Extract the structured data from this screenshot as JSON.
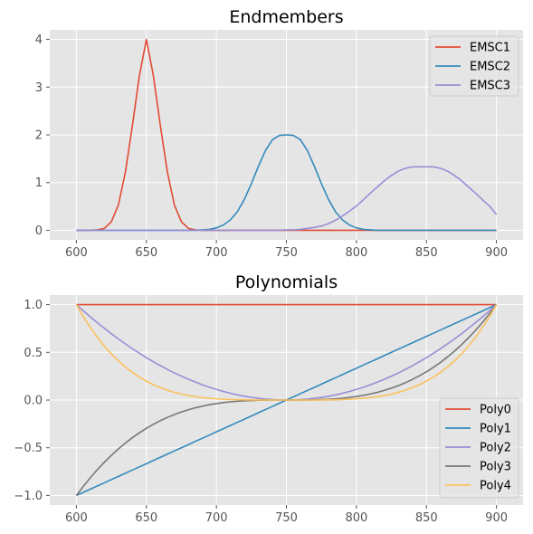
{
  "style": {
    "axes_bg": "#E5E5E5",
    "grid_color": "#FFFFFF",
    "tick_color": "#555555"
  },
  "chart_data": [
    {
      "type": "line",
      "title": "Endmembers",
      "xlabel": "",
      "ylabel": "",
      "xlim": [
        581,
        919
      ],
      "ylim": [
        -0.2,
        4.2
      ],
      "xticks": [
        600,
        650,
        700,
        750,
        800,
        850,
        900
      ],
      "yticks": [
        0,
        1,
        2,
        3,
        4
      ],
      "xtick_labels": [
        "600",
        "650",
        "700",
        "750",
        "800",
        "850",
        "900"
      ],
      "ytick_labels": [
        "0",
        "1",
        "2",
        "3",
        "4"
      ],
      "grid": true,
      "legend_position": "upper-right",
      "x": [
        600,
        605,
        610,
        615,
        620,
        625,
        630,
        635,
        640,
        645,
        650,
        655,
        660,
        665,
        670,
        675,
        680,
        685,
        690,
        695,
        700,
        705,
        710,
        715,
        720,
        725,
        730,
        735,
        740,
        745,
        750,
        755,
        760,
        765,
        770,
        775,
        780,
        785,
        790,
        795,
        800,
        805,
        810,
        815,
        820,
        825,
        830,
        835,
        840,
        845,
        850,
        855,
        860,
        865,
        870,
        875,
        880,
        885,
        890,
        895,
        900
      ],
      "series": [
        {
          "name": "EMSC1",
          "color": "#E24A33",
          "values": [
            0.0,
            0.0,
            0.0,
            0.01,
            0.04,
            0.18,
            0.53,
            1.22,
            2.19,
            3.24,
            4.0,
            3.24,
            2.19,
            1.22,
            0.53,
            0.18,
            0.04,
            0.01,
            0.0,
            0.0,
            0.0,
            0.0,
            0.0,
            0.0,
            0.0,
            0.0,
            0.0,
            0.0,
            0.0,
            0.0,
            0.0,
            0.0,
            0.0,
            0.0,
            0.0,
            0.0,
            0.0,
            0.0,
            0.0,
            0.0,
            0.0,
            0.0,
            0.0,
            0.0,
            0.0,
            0.0,
            0.0,
            0.0,
            0.0,
            0.0,
            0.0,
            0.0,
            0.0,
            0.0,
            0.0,
            0.0,
            0.0,
            0.0,
            0.0,
            0.0,
            0.0
          ]
        },
        {
          "name": "EMSC2",
          "color": "#348ABD",
          "values": [
            0.0,
            0.0,
            0.0,
            0.0,
            0.0,
            0.0,
            0.0,
            0.0,
            0.0,
            0.0,
            0.0,
            0.0,
            0.0,
            0.0,
            0.0,
            0.0,
            0.0,
            0.0,
            0.01,
            0.02,
            0.05,
            0.11,
            0.22,
            0.39,
            0.65,
            0.98,
            1.34,
            1.67,
            1.9,
            1.99,
            2.0,
            1.99,
            1.9,
            1.67,
            1.34,
            0.98,
            0.65,
            0.39,
            0.22,
            0.11,
            0.05,
            0.02,
            0.01,
            0.0,
            0.0,
            0.0,
            0.0,
            0.0,
            0.0,
            0.0,
            0.0,
            0.0,
            0.0,
            0.0,
            0.0,
            0.0,
            0.0,
            0.0,
            0.0,
            0.0,
            0.0
          ]
        },
        {
          "name": "EMSC3",
          "color": "#988ED5",
          "values": [
            0.0,
            0.0,
            0.0,
            0.0,
            0.0,
            0.0,
            0.0,
            0.0,
            0.0,
            0.0,
            0.0,
            0.0,
            0.0,
            0.0,
            0.0,
            0.0,
            0.0,
            0.0,
            0.0,
            0.0,
            0.0,
            0.0,
            0.0,
            0.0,
            0.0,
            0.0,
            0.0,
            0.0,
            0.0,
            0.0,
            0.01,
            0.01,
            0.02,
            0.04,
            0.06,
            0.09,
            0.14,
            0.21,
            0.3,
            0.4,
            0.51,
            0.64,
            0.78,
            0.91,
            1.04,
            1.15,
            1.24,
            1.3,
            1.33,
            1.33,
            1.33,
            1.33,
            1.3,
            1.24,
            1.15,
            1.04,
            0.91,
            0.78,
            0.64,
            0.51,
            0.33
          ]
        }
      ]
    },
    {
      "type": "line",
      "title": "Polynomials",
      "xlabel": "",
      "ylabel": "",
      "xlim": [
        581,
        919
      ],
      "ylim": [
        -1.1,
        1.1
      ],
      "xticks": [
        600,
        650,
        700,
        750,
        800,
        850,
        900
      ],
      "yticks": [
        -1.0,
        -0.5,
        0.0,
        0.5,
        1.0
      ],
      "xtick_labels": [
        "600",
        "650",
        "700",
        "750",
        "800",
        "850",
        "900"
      ],
      "ytick_labels": [
        "−1.0",
        "−0.5",
        "0.0",
        "0.5",
        "1.0"
      ],
      "grid": true,
      "legend_position": "lower-right",
      "x": [
        600,
        605,
        610,
        615,
        620,
        625,
        630,
        635,
        640,
        645,
        650,
        655,
        660,
        665,
        670,
        675,
        680,
        685,
        690,
        695,
        700,
        705,
        710,
        715,
        720,
        725,
        730,
        735,
        740,
        745,
        750,
        755,
        760,
        765,
        770,
        775,
        780,
        785,
        790,
        795,
        800,
        805,
        810,
        815,
        820,
        825,
        830,
        835,
        840,
        845,
        850,
        855,
        860,
        865,
        870,
        875,
        880,
        885,
        890,
        895,
        900
      ],
      "series": [
        {
          "name": "Poly0",
          "color": "#E24A33",
          "values": [
            1,
            1,
            1,
            1,
            1,
            1,
            1,
            1,
            1,
            1,
            1,
            1,
            1,
            1,
            1,
            1,
            1,
            1,
            1,
            1,
            1,
            1,
            1,
            1,
            1,
            1,
            1,
            1,
            1,
            1,
            1,
            1,
            1,
            1,
            1,
            1,
            1,
            1,
            1,
            1,
            1,
            1,
            1,
            1,
            1,
            1,
            1,
            1,
            1,
            1,
            1,
            1,
            1,
            1,
            1,
            1,
            1,
            1,
            1,
            1,
            1
          ]
        },
        {
          "name": "Poly1",
          "color": "#348ABD",
          "values": [
            -1.0,
            -0.967,
            -0.933,
            -0.9,
            -0.867,
            -0.833,
            -0.8,
            -0.767,
            -0.733,
            -0.7,
            -0.667,
            -0.633,
            -0.6,
            -0.567,
            -0.533,
            -0.5,
            -0.467,
            -0.433,
            -0.4,
            -0.367,
            -0.333,
            -0.3,
            -0.267,
            -0.233,
            -0.2,
            -0.167,
            -0.133,
            -0.1,
            -0.067,
            -0.033,
            0.0,
            0.033,
            0.067,
            0.1,
            0.133,
            0.167,
            0.2,
            0.233,
            0.267,
            0.3,
            0.333,
            0.367,
            0.4,
            0.433,
            0.467,
            0.5,
            0.533,
            0.567,
            0.6,
            0.633,
            0.667,
            0.7,
            0.733,
            0.767,
            0.8,
            0.833,
            0.867,
            0.9,
            0.933,
            0.967,
            1.0
          ]
        },
        {
          "name": "Poly2",
          "color": "#988ED5",
          "values": [
            1.0,
            0.934,
            0.871,
            0.81,
            0.751,
            0.694,
            0.64,
            0.588,
            0.538,
            0.49,
            0.444,
            0.401,
            0.36,
            0.321,
            0.284,
            0.25,
            0.218,
            0.188,
            0.16,
            0.134,
            0.111,
            0.09,
            0.071,
            0.054,
            0.04,
            0.028,
            0.018,
            0.01,
            0.004,
            0.001,
            0.0,
            0.001,
            0.004,
            0.01,
            0.018,
            0.028,
            0.04,
            0.054,
            0.071,
            0.09,
            0.111,
            0.134,
            0.16,
            0.188,
            0.218,
            0.25,
            0.284,
            0.321,
            0.36,
            0.401,
            0.444,
            0.49,
            0.538,
            0.588,
            0.64,
            0.694,
            0.751,
            0.81,
            0.871,
            0.934,
            1.0
          ]
        },
        {
          "name": "Poly3",
          "color": "#777777",
          "values": [
            -1.0,
            -0.904,
            -0.813,
            -0.729,
            -0.651,
            -0.579,
            -0.512,
            -0.451,
            -0.394,
            -0.343,
            -0.296,
            -0.254,
            -0.216,
            -0.182,
            -0.152,
            -0.125,
            -0.102,
            -0.081,
            -0.064,
            -0.049,
            -0.037,
            -0.027,
            -0.019,
            -0.013,
            -0.008,
            -0.005,
            -0.002,
            -0.001,
            0.0,
            0.0,
            0.0,
            0.0,
            0.0,
            0.001,
            0.002,
            0.005,
            0.008,
            0.013,
            0.019,
            0.027,
            0.037,
            0.049,
            0.064,
            0.081,
            0.102,
            0.125,
            0.152,
            0.182,
            0.216,
            0.254,
            0.296,
            0.343,
            0.394,
            0.451,
            0.512,
            0.579,
            0.651,
            0.729,
            0.813,
            0.904,
            1.0
          ]
        },
        {
          "name": "Poly4",
          "color": "#FBC15E",
          "values": [
            1.0,
            0.873,
            0.759,
            0.656,
            0.564,
            0.482,
            0.41,
            0.346,
            0.29,
            0.24,
            0.198,
            0.161,
            0.13,
            0.103,
            0.081,
            0.063,
            0.047,
            0.035,
            0.026,
            0.018,
            0.012,
            0.008,
            0.005,
            0.003,
            0.002,
            0.001,
            0.0,
            0.0,
            0.0,
            0.0,
            0.0,
            0.0,
            0.0,
            0.0,
            0.0,
            0.001,
            0.002,
            0.003,
            0.005,
            0.008,
            0.012,
            0.018,
            0.026,
            0.035,
            0.047,
            0.063,
            0.081,
            0.103,
            0.13,
            0.161,
            0.198,
            0.24,
            0.29,
            0.346,
            0.41,
            0.482,
            0.564,
            0.656,
            0.759,
            0.873,
            1.0
          ]
        }
      ]
    }
  ]
}
